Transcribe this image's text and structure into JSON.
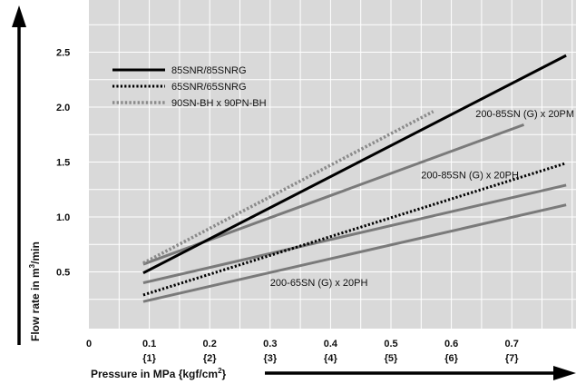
{
  "chart_data": {
    "type": "line",
    "xlabel": "Pressure in MPa {kgf/cm²}",
    "xlabel_parts": {
      "main": "Pressure in MPa {kgf/cm",
      "sup": "2",
      "end": "}"
    },
    "ylabel": "Flow rate in m³/min",
    "ylabel_parts": {
      "main": "Flow rate in m",
      "sup": "3",
      "end": "/min"
    },
    "xlim": [
      0,
      0.8
    ],
    "ylim": [
      0,
      2.75
    ],
    "grid": true,
    "legend_position": "top-left",
    "x_ticks": [
      {
        "value": 0,
        "label": "0",
        "sub": ""
      },
      {
        "value": 0.1,
        "label": "0.1",
        "sub": "{1}"
      },
      {
        "value": 0.2,
        "label": "0.2",
        "sub": "{2}"
      },
      {
        "value": 0.3,
        "label": "0.3",
        "sub": "{3}"
      },
      {
        "value": 0.4,
        "label": "0.4",
        "sub": "{4}"
      },
      {
        "value": 0.5,
        "label": "0.5",
        "sub": "{5}"
      },
      {
        "value": 0.6,
        "label": "0.6",
        "sub": "{6}"
      },
      {
        "value": 0.7,
        "label": "0.7",
        "sub": "{7}"
      }
    ],
    "y_ticks": [
      {
        "value": 0.5,
        "label": "0.5"
      },
      {
        "value": 1.0,
        "label": "1.0"
      },
      {
        "value": 1.5,
        "label": "1.5"
      },
      {
        "value": 2.0,
        "label": "2.0"
      },
      {
        "value": 2.5,
        "label": "2.5"
      }
    ],
    "series": [
      {
        "name": "85SNR/85SNRG",
        "legend": true,
        "style": "solid-bold",
        "color": "#000000",
        "x": [
          0.09,
          0.79
        ],
        "y": [
          0.49,
          2.47
        ]
      },
      {
        "name": "65SNR/65SNRG",
        "legend": true,
        "style": "dotted",
        "color": "#000000",
        "x": [
          0.09,
          0.79
        ],
        "y": [
          0.29,
          1.49
        ]
      },
      {
        "name": "90SN-BH x 90PN-BH",
        "legend": true,
        "style": "dotted-gray",
        "color": "#8a8a8a",
        "x": [
          0.09,
          0.57
        ],
        "y": [
          0.58,
          1.96
        ]
      },
      {
        "name": "200-85SN (G) x 20PM",
        "legend": false,
        "label_anchor": [
          0.64,
          1.91
        ],
        "style": "solid-gray",
        "color": "#7a7a7a",
        "x": [
          0.09,
          0.72
        ],
        "y": [
          0.57,
          1.84
        ]
      },
      {
        "name": "200-85SN (G) x 20PH",
        "legend": false,
        "label_anchor": [
          0.55,
          1.35
        ],
        "style": "solid-gray",
        "color": "#7a7a7a",
        "x": [
          0.09,
          0.79
        ],
        "y": [
          0.4,
          1.29
        ]
      },
      {
        "name": "200-65SN (G) x 20PH",
        "legend": false,
        "label_anchor": [
          0.3,
          0.37
        ],
        "style": "solid-gray",
        "color": "#7a7a7a",
        "x": [
          0.09,
          0.79
        ],
        "y": [
          0.23,
          1.11
        ]
      }
    ]
  },
  "colors": {
    "plot_background": "#d9d9d9",
    "grid": "#ffffff",
    "arrow": "#000000"
  }
}
